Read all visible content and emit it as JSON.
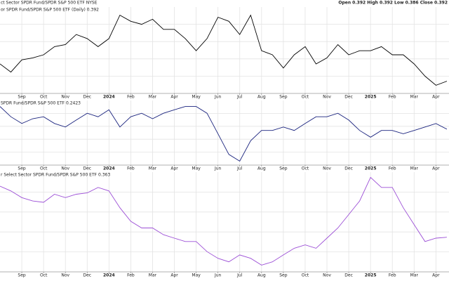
{
  "chart_data": [
    {
      "type": "line",
      "title": "ct Sector SPDR Fund/SPDR S&P 500 ETF NYSE",
      "ohlc": "Open 0.392 High 0.392 Low 0.386 Close 0.392",
      "label": "or SPDR Fund/SPDR S&P 500 ETF (Daily) 0.392",
      "color": "#000000",
      "grid": true,
      "x": [
        0,
        0.5,
        1,
        1.5,
        2,
        2.5,
        3,
        3.5,
        4,
        4.5,
        5,
        5.5,
        6,
        6.5,
        7,
        7.5,
        8,
        8.5,
        9,
        9.5,
        10,
        10.5,
        11,
        11.5,
        12,
        12.5,
        13,
        13.5,
        14,
        14.5,
        15,
        15.5,
        16,
        16.5,
        17,
        17.5,
        18,
        18.5,
        19,
        19.5,
        20,
        20.5
      ],
      "values": [
        0.409,
        0.401,
        0.413,
        0.415,
        0.418,
        0.426,
        0.428,
        0.438,
        0.434,
        0.426,
        0.434,
        0.457,
        0.451,
        0.448,
        0.453,
        0.443,
        0.443,
        0.434,
        0.422,
        0.434,
        0.455,
        0.451,
        0.438,
        0.457,
        0.422,
        0.418,
        0.405,
        0.418,
        0.426,
        0.409,
        0.415,
        0.428,
        0.418,
        0.422,
        0.422,
        0.426,
        0.418,
        0.418,
        0.409,
        0.397,
        0.388,
        0.392
      ],
      "xlim": [
        0,
        20.6
      ],
      "ylim": [
        0.38,
        0.465
      ],
      "xticks": [
        {
          "value": 1,
          "label": "Sep"
        },
        {
          "value": 2,
          "label": "Oct"
        },
        {
          "value": 3,
          "label": "Nov"
        },
        {
          "value": 4,
          "label": "Dec"
        },
        {
          "value": 5,
          "label": "2024"
        },
        {
          "value": 6,
          "label": "Feb"
        },
        {
          "value": 7,
          "label": "Mar"
        },
        {
          "value": 8,
          "label": "Apr"
        },
        {
          "value": 9,
          "label": "May"
        },
        {
          "value": 10,
          "label": "Jun"
        },
        {
          "value": 11,
          "label": "Jul"
        },
        {
          "value": 12,
          "label": "Aug"
        },
        {
          "value": 13,
          "label": "Sep"
        },
        {
          "value": 14,
          "label": "Oct"
        },
        {
          "value": 15,
          "label": "Nov"
        },
        {
          "value": 16,
          "label": "Dec"
        },
        {
          "value": 17,
          "label": "2025"
        },
        {
          "value": 18,
          "label": "Feb"
        },
        {
          "value": 19,
          "label": "Mar"
        },
        {
          "value": 20,
          "label": "Apr"
        }
      ]
    },
    {
      "type": "line",
      "label": "SPDR Fund/SPDR S&P 500 ETF 0.2423",
      "color": "#1a237e",
      "grid": true,
      "x": [
        0,
        0.5,
        1,
        1.5,
        2,
        2.5,
        3,
        3.5,
        4,
        4.5,
        5,
        5.5,
        6,
        6.5,
        7,
        7.5,
        8,
        8.5,
        9,
        9.5,
        10,
        10.5,
        11,
        11.5,
        12,
        12.5,
        13,
        13.5,
        14,
        14.5,
        15,
        15.5,
        16,
        16.5,
        17,
        17.5,
        18,
        18.5,
        19,
        19.5,
        20,
        20.5
      ],
      "values": [
        0.2626,
        0.2534,
        0.2473,
        0.2516,
        0.2534,
        0.2473,
        0.2442,
        0.2504,
        0.2565,
        0.2534,
        0.2596,
        0.2442,
        0.2534,
        0.2565,
        0.2516,
        0.2565,
        0.2596,
        0.2626,
        0.2626,
        0.2565,
        0.2381,
        0.2196,
        0.2135,
        0.2319,
        0.2411,
        0.2411,
        0.2442,
        0.2411,
        0.2473,
        0.2534,
        0.2534,
        0.2565,
        0.2504,
        0.2411,
        0.235,
        0.2411,
        0.2411,
        0.2381,
        0.2411,
        0.2442,
        0.2473,
        0.2423
      ],
      "xlim": [
        0,
        20.6
      ],
      "ylim": [
        0.21,
        0.268
      ],
      "xticks": [
        {
          "value": 1,
          "label": "Sep"
        },
        {
          "value": 2,
          "label": "Oct"
        },
        {
          "value": 3,
          "label": "Nov"
        },
        {
          "value": 4,
          "label": "Dec"
        },
        {
          "value": 5,
          "label": "2024"
        },
        {
          "value": 6,
          "label": "Feb"
        },
        {
          "value": 7,
          "label": "Mar"
        },
        {
          "value": 8,
          "label": "Apr"
        },
        {
          "value": 9,
          "label": "May"
        },
        {
          "value": 10,
          "label": "Jun"
        },
        {
          "value": 11,
          "label": "Jul"
        },
        {
          "value": 12,
          "label": "Aug"
        },
        {
          "value": 13,
          "label": "Sep"
        },
        {
          "value": 14,
          "label": "Oct"
        },
        {
          "value": 15,
          "label": "Nov"
        },
        {
          "value": 16,
          "label": "Dec"
        },
        {
          "value": 17,
          "label": "2025"
        },
        {
          "value": 18,
          "label": "Feb"
        },
        {
          "value": 19,
          "label": "Mar"
        },
        {
          "value": 20,
          "label": "Apr"
        }
      ]
    },
    {
      "type": "line",
      "label": "r Select Sector SPDR Fund/SPDR S&P 500 ETF 0.363",
      "color": "#9c4fd6",
      "grid": true,
      "x": [
        0,
        0.5,
        1,
        1.5,
        2,
        2.5,
        3,
        3.5,
        4,
        4.5,
        5,
        5.5,
        6,
        6.5,
        7,
        7.5,
        8,
        8.5,
        9,
        9.5,
        10,
        10.5,
        11,
        11.5,
        12,
        12.5,
        13,
        13.5,
        14,
        14.5,
        15,
        15.5,
        16,
        16.5,
        17,
        17.5,
        18,
        18.5,
        19,
        19.5,
        20,
        20.5
      ],
      "values": [
        0.4116,
        0.4071,
        0.4007,
        0.3975,
        0.3962,
        0.4039,
        0.4007,
        0.4039,
        0.4052,
        0.4104,
        0.4071,
        0.3911,
        0.3782,
        0.3718,
        0.3718,
        0.3654,
        0.3621,
        0.3589,
        0.3589,
        0.3493,
        0.3429,
        0.3396,
        0.3461,
        0.3429,
        0.3364,
        0.3396,
        0.3461,
        0.3525,
        0.3557,
        0.3525,
        0.3621,
        0.3718,
        0.3846,
        0.3975,
        0.42,
        0.4104,
        0.4104,
        0.3911,
        0.375,
        0.3589,
        0.3621,
        0.363
      ],
      "xlim": [
        0,
        20.6
      ],
      "ylim": [
        0.33,
        0.425
      ],
      "xticks": [
        {
          "value": 1,
          "label": "Sep"
        },
        {
          "value": 2,
          "label": "Oct"
        },
        {
          "value": 3,
          "label": "Nov"
        },
        {
          "value": 4,
          "label": "Dec"
        },
        {
          "value": 5,
          "label": "2024"
        },
        {
          "value": 6,
          "label": "Feb"
        },
        {
          "value": 7,
          "label": "Mar"
        },
        {
          "value": 8,
          "label": "Apr"
        },
        {
          "value": 9,
          "label": "May"
        },
        {
          "value": 10,
          "label": "Jun"
        },
        {
          "value": 11,
          "label": "Jul"
        },
        {
          "value": 12,
          "label": "Aug"
        },
        {
          "value": 13,
          "label": "Sep"
        },
        {
          "value": 14,
          "label": "Oct"
        },
        {
          "value": 15,
          "label": "Nov"
        },
        {
          "value": 16,
          "label": "Dec"
        },
        {
          "value": 17,
          "label": "2025"
        },
        {
          "value": 18,
          "label": "Feb"
        },
        {
          "value": 19,
          "label": "Mar"
        },
        {
          "value": 20,
          "label": "Apr"
        }
      ]
    }
  ]
}
